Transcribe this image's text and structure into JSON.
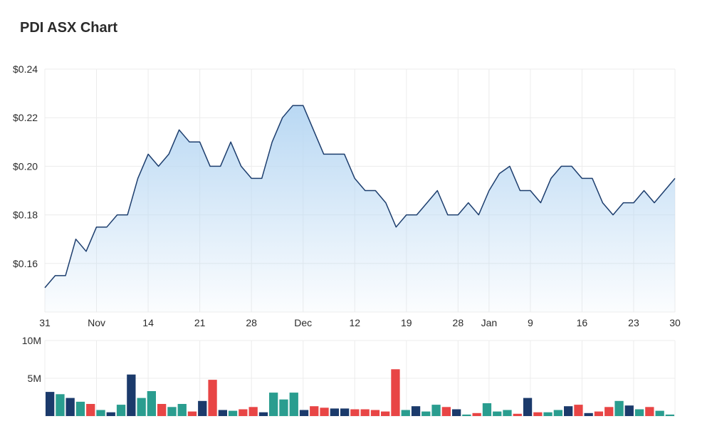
{
  "title": "PDI ASX Chart",
  "chart_data": [
    {
      "type": "area",
      "title": "PDI ASX Chart",
      "y_ticks": [
        "$0.16",
        "$0.18",
        "$0.20",
        "$0.22",
        "$0.24"
      ],
      "y_tick_values": [
        0.16,
        0.18,
        0.2,
        0.22,
        0.24
      ],
      "ylim": [
        0.14,
        0.24
      ],
      "x_ticks": [
        "31",
        "Nov",
        "14",
        "21",
        "28",
        "Dec",
        "12",
        "19",
        "28",
        "Jan",
        "9",
        "16",
        "23",
        "30"
      ],
      "x_tick_index": [
        0,
        5,
        10,
        15,
        20,
        25,
        30,
        35,
        40,
        43,
        47,
        52,
        57,
        61
      ],
      "grid": true,
      "line_color": "#1d3e6e",
      "fill_color": "#b9d8f3",
      "values": [
        0.15,
        0.155,
        0.155,
        0.17,
        0.165,
        0.175,
        0.175,
        0.18,
        0.18,
        0.195,
        0.205,
        0.2,
        0.205,
        0.215,
        0.21,
        0.21,
        0.2,
        0.2,
        0.21,
        0.2,
        0.195,
        0.195,
        0.21,
        0.22,
        0.225,
        0.225,
        0.215,
        0.205,
        0.205,
        0.205,
        0.195,
        0.19,
        0.19,
        0.185,
        0.175,
        0.18,
        0.18,
        0.185,
        0.19,
        0.18,
        0.18,
        0.185,
        0.18,
        0.19,
        0.197,
        0.2,
        0.19,
        0.19,
        0.185,
        0.195,
        0.2,
        0.2,
        0.195,
        0.195,
        0.185,
        0.18,
        0.185,
        0.185,
        0.19,
        0.185,
        0.19,
        0.195
      ]
    },
    {
      "type": "bar",
      "title": "",
      "y_ticks": [
        "5M",
        "10M"
      ],
      "y_tick_values": [
        5,
        10
      ],
      "ylim": [
        0,
        10
      ],
      "units": "M",
      "colors": {
        "up": "#2a9d8f",
        "down": "#e84545",
        "flat": "#1b3a6b"
      },
      "values": [
        3.2,
        2.9,
        2.4,
        1.9,
        1.6,
        0.8,
        0.5,
        1.5,
        5.5,
        2.4,
        3.3,
        1.6,
        1.2,
        1.6,
        0.6,
        2.0,
        4.8,
        0.8,
        0.7,
        0.9,
        1.2,
        0.5,
        3.1,
        2.2,
        3.1,
        0.8,
        1.3,
        1.1,
        1.0,
        1.0,
        0.9,
        0.9,
        0.8,
        0.6,
        6.2,
        0.8,
        1.3,
        0.6,
        1.5,
        1.2,
        0.9,
        0.2,
        0.4,
        1.7,
        0.6,
        0.8,
        0.3,
        2.4,
        0.5,
        0.5,
        0.8,
        1.3,
        1.5,
        0.4,
        0.6,
        1.2,
        2.0,
        1.4,
        0.9,
        1.2,
        0.7,
        0.2
      ],
      "directions": [
        "flat",
        "up",
        "flat",
        "up",
        "down",
        "up",
        "flat",
        "up",
        "flat",
        "up",
        "up",
        "down",
        "up",
        "up",
        "down",
        "flat",
        "down",
        "flat",
        "up",
        "down",
        "down",
        "flat",
        "up",
        "up",
        "up",
        "flat",
        "down",
        "down",
        "flat",
        "flat",
        "down",
        "down",
        "down",
        "down",
        "down",
        "up",
        "flat",
        "up",
        "up",
        "down",
        "flat",
        "up",
        "down",
        "up",
        "up",
        "up",
        "down",
        "flat",
        "down",
        "up",
        "up",
        "flat",
        "down",
        "flat",
        "down",
        "down",
        "up",
        "flat",
        "up",
        "down",
        "up",
        "up"
      ]
    }
  ]
}
